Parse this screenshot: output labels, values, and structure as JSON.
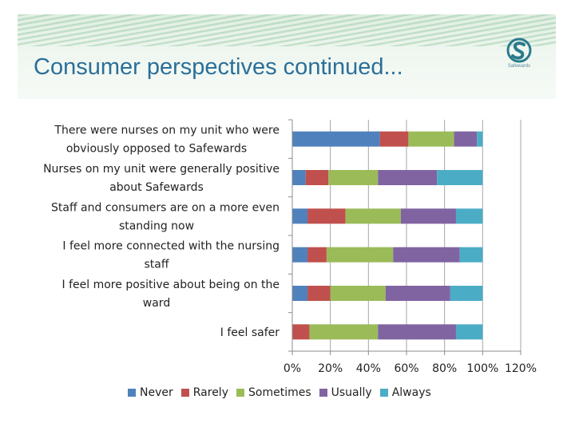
{
  "slide": {
    "title": "Consumer perspectives continued...",
    "logo_text": "Safewards"
  },
  "chart_data": {
    "type": "bar",
    "orientation": "horizontal",
    "stacked": true,
    "categories": [
      "There were nurses on my unit who were obviously opposed to Safewards",
      "Nurses on my unit were generally positive about Safewards",
      "Staff and consumers are on a more even standing now",
      "I feel more connected with the nursing staff",
      "I feel more positive about being on the ward",
      "I feel safer"
    ],
    "series": [
      {
        "name": "Never",
        "color": "#4f81bd",
        "values": [
          46,
          7,
          8,
          8,
          8,
          0
        ]
      },
      {
        "name": "Rarely",
        "color": "#c0504d",
        "values": [
          15,
          12,
          20,
          10,
          12,
          9
        ]
      },
      {
        "name": "Sometimes",
        "color": "#9bbb59",
        "values": [
          24,
          26,
          29,
          35,
          29,
          36
        ]
      },
      {
        "name": "Usually",
        "color": "#8064a2",
        "values": [
          12,
          31,
          29,
          35,
          34,
          41
        ]
      },
      {
        "name": "Always",
        "color": "#4bacc6",
        "values": [
          3,
          24,
          14,
          12,
          17,
          14
        ]
      }
    ],
    "x_ticks": [
      "0%",
      "20%",
      "40%",
      "60%",
      "80%",
      "100%",
      "120%"
    ],
    "xlim": [
      0,
      120
    ],
    "legend_position": "bottom",
    "grid": true
  }
}
